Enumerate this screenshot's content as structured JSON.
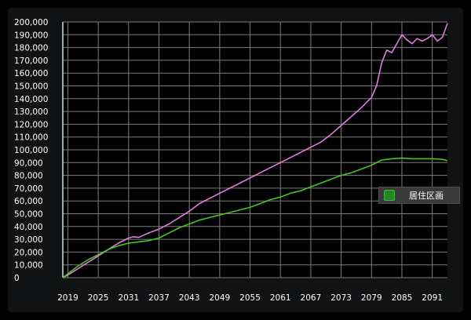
{
  "chart_data": {
    "type": "line",
    "title": "",
    "xlabel": "",
    "ylabel": "",
    "xlim": [
      2018,
      2094
    ],
    "ylim": [
      0,
      200000
    ],
    "x_ticks": [
      "2019",
      "2025",
      "2031",
      "2037",
      "2043",
      "2049",
      "2055",
      "2061",
      "2067",
      "2073",
      "2079",
      "2085",
      "2091"
    ],
    "y_ticks": [
      "0",
      "10,000",
      "20,000",
      "30,000",
      "40,000",
      "50,000",
      "60,000",
      "70,000",
      "80,000",
      "90,000",
      "100,000",
      "110,000",
      "120,000",
      "130,000",
      "140,000",
      "150,000",
      "160,000",
      "170,000",
      "180,000",
      "190,000",
      "200,000"
    ],
    "grid": true,
    "legend_position": "right",
    "series": [
      {
        "name": "",
        "color": "#e07be0",
        "x": [
          2018,
          2019,
          2021,
          2023,
          2025,
          2027,
          2029,
          2031,
          2032,
          2033,
          2035,
          2037,
          2039,
          2041,
          2043,
          2045,
          2047,
          2049,
          2051,
          2053,
          2055,
          2057,
          2059,
          2061,
          2063,
          2065,
          2067,
          2069,
          2071,
          2073,
          2075,
          2077,
          2079,
          2080,
          2081,
          2082,
          2083,
          2084,
          2085,
          2086,
          2087,
          2088,
          2089,
          2090,
          2091,
          2092,
          2093,
          2094
        ],
        "y": [
          0,
          2000,
          7000,
          12000,
          17000,
          22000,
          27000,
          31000,
          32000,
          31500,
          35000,
          38000,
          42000,
          47000,
          52000,
          58000,
          62000,
          66000,
          70000,
          74000,
          78000,
          82000,
          86000,
          90000,
          94000,
          98000,
          102000,
          106000,
          112000,
          119000,
          126000,
          133000,
          141000,
          150000,
          168000,
          178000,
          176000,
          183000,
          190000,
          186000,
          183000,
          187000,
          185000,
          187000,
          190000,
          185000,
          188000,
          199000
        ]
      },
      {
        "name": "居住区画",
        "color": "#47c71f",
        "x": [
          2018,
          2019,
          2021,
          2023,
          2025,
          2027,
          2029,
          2031,
          2033,
          2035,
          2037,
          2039,
          2041,
          2043,
          2045,
          2047,
          2049,
          2051,
          2053,
          2055,
          2057,
          2059,
          2061,
          2063,
          2065,
          2067,
          2069,
          2071,
          2073,
          2075,
          2077,
          2079,
          2081,
          2083,
          2085,
          2087,
          2089,
          2091,
          2093,
          2094
        ],
        "y": [
          0,
          3000,
          9000,
          14000,
          18000,
          22000,
          25000,
          27000,
          28000,
          29000,
          31000,
          35000,
          39000,
          42000,
          45000,
          47000,
          49000,
          51000,
          53000,
          55000,
          58000,
          61000,
          63000,
          66000,
          68000,
          71000,
          74000,
          77000,
          80000,
          82000,
          85000,
          88000,
          92000,
          93000,
          93500,
          93000,
          93000,
          93000,
          92500,
          91500
        ]
      }
    ]
  }
}
